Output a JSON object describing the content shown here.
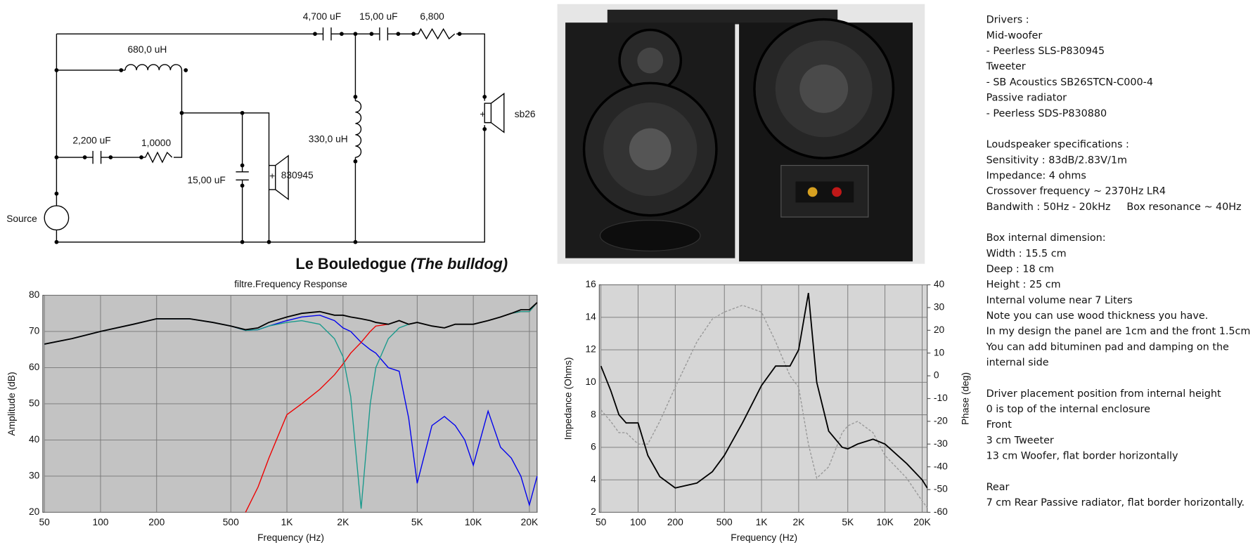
{
  "schematic": {
    "labels": {
      "cap_top_1": "4,700 uF",
      "cap_top_2": "15,00 uF",
      "res_top": "6,800",
      "inductor_woofer": "680,0 uH",
      "inductor_tweeter": "330,0 uH",
      "tweeter": "sb26",
      "cap_zobel": "2,200 uF",
      "res_zobel": "1,0000",
      "cap_woofer": "15,00 uF",
      "woofer": "830945",
      "source": "Source",
      "tweeter_polarity": "+",
      "woofer_polarity": "+"
    }
  },
  "caption": {
    "title": "Le Bouledogue",
    "subtitle": "(The bulldog)"
  },
  "notes": [
    [
      "Drivers :",
      "Mid-woofer",
      "- Peerless SLS-P830945",
      "Tweeter",
      "- SB Acoustics SB26STCN-C000-4",
      "Passive radiator",
      "- Peerless SDS-P830880"
    ],
    [
      "Loudspeaker specifications :",
      "Sensitivity : 83dB/2.83V/1m",
      "Impedance: 4 ohms",
      "Crossover frequency ~ 2370Hz LR4",
      "Bandwith : 50Hz - 20kHz     Box resonance ~ 40Hz"
    ],
    [
      "Box internal dimension:",
      "Width : 15.5 cm",
      "Deep : 18 cm",
      "Height : 25 cm",
      "Internal volume near 7 Liters",
      "Note you can use wood thickness you have.",
      "In my design the panel are 1cm and the front 1.5cm",
      "You can add bituminen pad and damping on the",
      "internal side"
    ],
    [
      "Driver placement position from internal height",
      "0 is top of the internal enclosure",
      "Front",
      "3 cm Tweeter",
      "13 cm Woofer, flat border horizontally"
    ],
    [
      "Rear",
      "7 cm Rear Passive radiator, flat border horizontally."
    ]
  ],
  "chart_data": [
    {
      "type": "line",
      "title": "filtre.Frequency Response",
      "x_label": "Frequency (Hz)",
      "y_label": "Amplitude (dB)",
      "xscale": "log",
      "grid": true,
      "x": [
        50,
        70,
        100,
        150,
        200,
        300,
        400,
        500,
        600,
        700,
        800,
        1000,
        1200,
        1500,
        1800,
        2000,
        2200,
        2500,
        2800,
        3000,
        3500,
        4000,
        4500,
        5000,
        6000,
        7000,
        8000,
        9000,
        10000,
        12000,
        14000,
        16000,
        18000,
        20000,
        22000
      ],
      "xlim": [
        50,
        22000
      ],
      "xticks": [
        50,
        100,
        200,
        500,
        {
          "value": 1000,
          "label": "1K"
        },
        {
          "value": 2000,
          "label": "2K"
        },
        {
          "value": 5000,
          "label": "5K"
        },
        {
          "value": 10000,
          "label": "10K"
        },
        {
          "value": 20000,
          "label": "20K"
        }
      ],
      "ylim": [
        20,
        80
      ],
      "yticks": [
        20,
        30,
        40,
        50,
        60,
        70,
        80
      ],
      "series": [
        {
          "color": "#0000ee",
          "values": [
            66.5,
            68,
            70,
            72,
            73.5,
            73.5,
            72.5,
            71.5,
            70.3,
            70.5,
            71.5,
            73,
            74,
            74.5,
            73,
            71,
            70,
            67,
            65,
            64,
            60,
            59,
            46,
            28,
            44,
            46.5,
            44,
            40,
            33,
            48,
            38,
            35,
            30,
            22,
            30
          ]
        },
        {
          "color": "#ee0000",
          "values": [
            null,
            null,
            null,
            null,
            null,
            null,
            null,
            null,
            20,
            27,
            35,
            47,
            50,
            54,
            58,
            61,
            64,
            67,
            70,
            71.5,
            72,
            73,
            72,
            72.5,
            71.5,
            71,
            72,
            72,
            72,
            73,
            74,
            75,
            75.5,
            75.5,
            78
          ]
        },
        {
          "color": "#1a9a8c",
          "values": [
            66.5,
            68,
            70,
            72,
            73.5,
            73.5,
            72.5,
            71.5,
            70.3,
            70.5,
            71.5,
            72.5,
            73,
            72,
            68,
            63,
            52,
            21,
            50,
            60,
            68,
            71,
            72,
            72.5,
            71.5,
            71,
            72,
            72,
            72,
            73,
            74,
            75,
            75.5,
            75.5,
            78
          ]
        },
        {
          "color": "#000000",
          "values": [
            66.5,
            68,
            70,
            72,
            73.5,
            73.5,
            72.5,
            71.5,
            70.5,
            71,
            72.5,
            74,
            75,
            75.5,
            74.5,
            74.5,
            74,
            73.5,
            73,
            72.5,
            72,
            73,
            72,
            72.5,
            71.5,
            71,
            72,
            72,
            72,
            73,
            74,
            75,
            76,
            76,
            78
          ]
        }
      ]
    },
    {
      "type": "line",
      "x_label": "Frequency (Hz)",
      "y_label": "Impedance (Ohms)",
      "y2_label": "Phase (deg)",
      "xscale": "log",
      "grid": true,
      "x": [
        50,
        60,
        70,
        80,
        100,
        120,
        150,
        200,
        300,
        400,
        500,
        700,
        1000,
        1300,
        1700,
        2000,
        2400,
        2800,
        3500,
        4500,
        5000,
        6000,
        8000,
        10000,
        15000,
        20000,
        22000
      ],
      "xlim": [
        50,
        22000
      ],
      "xticks": [
        50,
        100,
        200,
        500,
        {
          "value": 1000,
          "label": "1K"
        },
        {
          "value": 2000,
          "label": "2K"
        },
        {
          "value": 5000,
          "label": "5K"
        },
        {
          "value": 10000,
          "label": "10K"
        },
        {
          "value": 20000,
          "label": "20K"
        }
      ],
      "ylim": [
        2,
        16
      ],
      "yticks": [
        2,
        4,
        6,
        8,
        10,
        12,
        14,
        16
      ],
      "y2lim": [
        -60,
        40
      ],
      "y2ticks": [
        -60,
        -50,
        -40,
        -30,
        -20,
        -10,
        0,
        10,
        20,
        30,
        40
      ],
      "series": [
        {
          "color": "#999999",
          "line_style": "dashed",
          "axis": "y2",
          "values": [
            -15,
            -20,
            -25,
            -25,
            -30,
            -30,
            -20,
            -5,
            15,
            25,
            28,
            31,
            28,
            15,
            0,
            -5,
            -30,
            -45,
            -40,
            -25,
            -22,
            -20,
            -25,
            -35,
            -45,
            -55,
            -58
          ]
        },
        {
          "color": "#000000",
          "values": [
            11,
            9.5,
            8,
            7.5,
            7.5,
            5.5,
            4.2,
            3.5,
            3.8,
            4.5,
            5.5,
            7.5,
            9.8,
            11,
            11,
            12,
            15.5,
            10,
            7,
            6,
            5.9,
            6.2,
            6.5,
            6.2,
            5,
            4,
            3.5
          ]
        }
      ]
    }
  ]
}
